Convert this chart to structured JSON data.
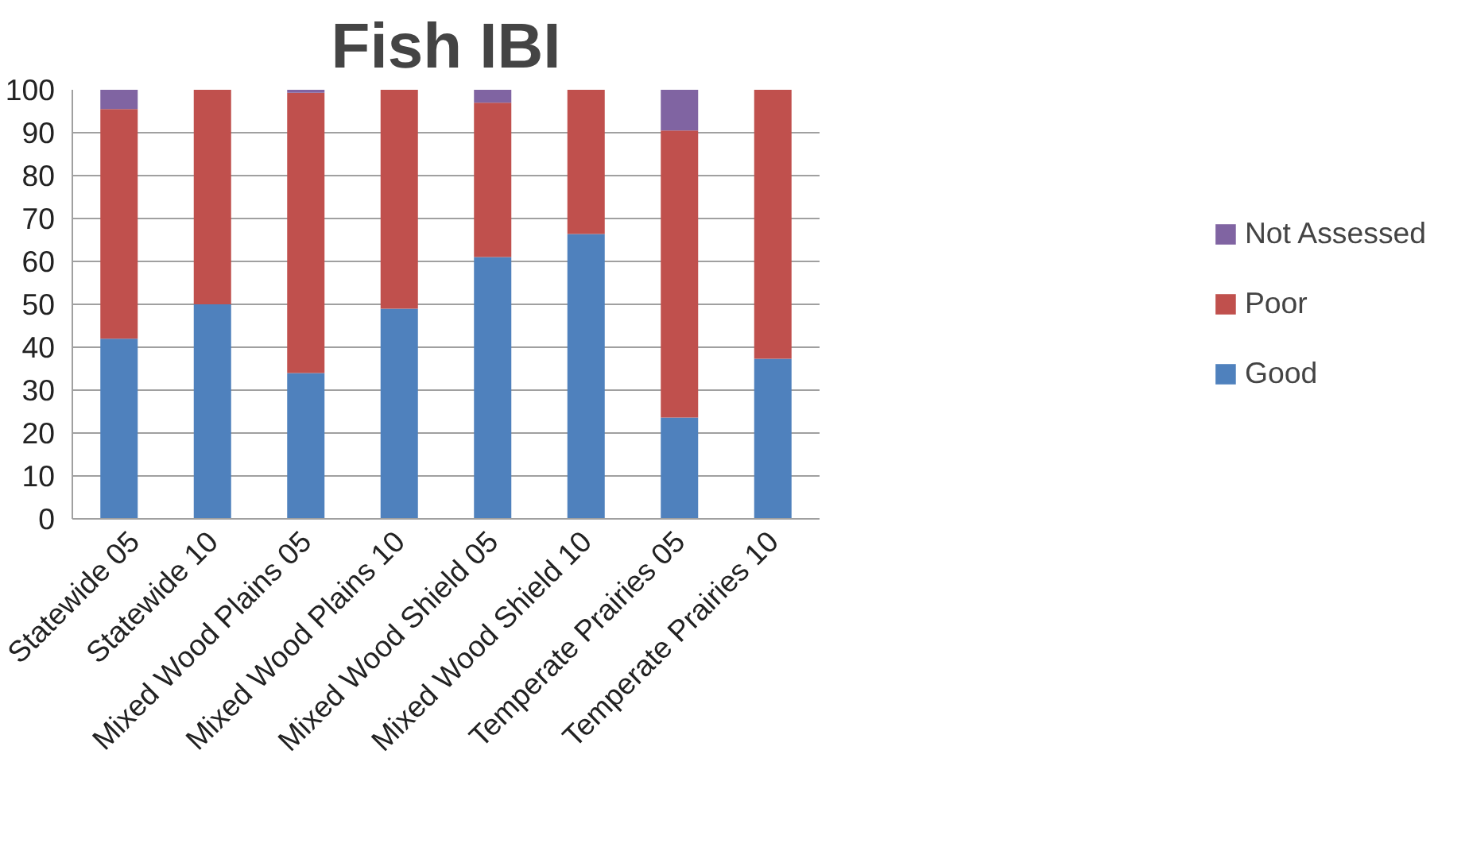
{
  "chart_data": {
    "type": "bar",
    "title": "Fish IBI",
    "stacked": true,
    "categories": [
      "Statewide 05",
      "Statewide 10",
      "Mixed Wood Plains 05",
      "Mixed Wood Plains 10",
      "Mixed Wood Shield 05",
      "Mixed Wood Shield 10",
      "Temperate Prairies 05",
      "Temperate Prairies 10"
    ],
    "series": [
      {
        "name": "Good",
        "color": "#4f81bd",
        "values": [
          42,
          50,
          34,
          49,
          61,
          66.4,
          23.6,
          37.3
        ]
      },
      {
        "name": "Poor",
        "color": "#c0504d",
        "values": [
          53.5,
          50,
          65.3,
          51,
          36,
          33.6,
          66.9,
          62.7
        ]
      },
      {
        "name": "Not Assessed",
        "color": "#8064a2",
        "values": [
          4.5,
          0,
          0.7,
          0,
          3,
          0,
          9.5,
          0
        ]
      }
    ],
    "ylim": [
      0,
      100
    ],
    "yticks": [
      0,
      10,
      20,
      30,
      40,
      50,
      60,
      70,
      80,
      90,
      100
    ],
    "grid": "y",
    "legend": "right"
  }
}
